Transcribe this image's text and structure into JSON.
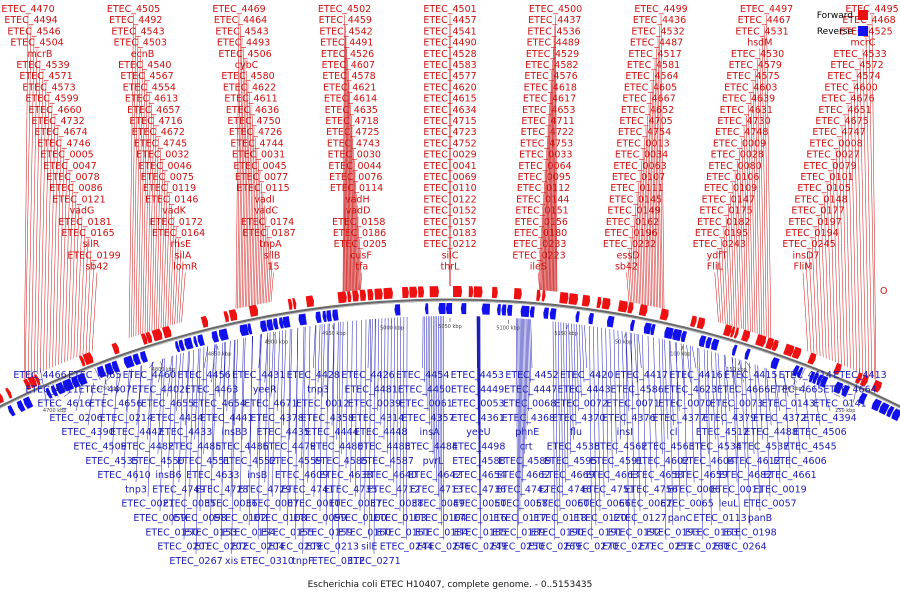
{
  "caption": "Escherichia coli ETEC H10407, complete genome. - 0..5153435",
  "legend": [
    {
      "label": "Forward",
      "color": "#ee1111"
    },
    {
      "label": "Reverse",
      "color": "#1111ee"
    }
  ],
  "origin_label": "O",
  "scale_labels": [
    "4700 kbp",
    "4750 kbp",
    "4800 kbp",
    "4850 kbp",
    "4900 kbp",
    "4950 kbp",
    "5000 kbp",
    "5050 kbp",
    "5100 kbp",
    "5150 kbp",
    "50 kbp",
    "100 kbp",
    "150 kbp",
    "200 kbp",
    "250 kbp"
  ],
  "colors": {
    "forward": "#ee1111",
    "reverse": "#1111ee",
    "forward_label": "#cc1111",
    "reverse_label": "#1a1ab4",
    "backbone": "#666666"
  },
  "forward_labels": [
    "ETEC_4470",
    "ETEC_4505",
    "ETEC_4469",
    "ETEC_4502",
    "ETEC_4501",
    "ETEC_4500",
    "ETEC_4499",
    "ETEC_4497",
    "ETEC_4495",
    "ETEC_4494",
    "ETEC_4492",
    "ETEC_4464",
    "ETEC_4459",
    "ETEC_4457",
    "ETEC_4437",
    "ETEC_4436",
    "ETEC_4467",
    "ETEC_4468",
    "ETEC_4546",
    "ETEC_4543",
    "ETEC_4543",
    "ETEC_4542",
    "ETEC_4541",
    "ETEC_4536",
    "ETEC_4532",
    "ETEC_4531",
    "ETEC_4525",
    "ETEC_4504",
    "ETEC_4503",
    "ETEC_4493",
    "ETEC_4491",
    "ETEC_4490",
    "ETEC_4489",
    "ETEC_4487",
    "hsdM",
    "mcrC",
    "mcrB",
    "ecnB",
    "ETEC_4506",
    "ETEC_4526",
    "ETEC_4528",
    "ETEC_4529",
    "ETEC_4517",
    "ETEC_4530",
    "ETEC_4533",
    "ETEC_4539",
    "ETEC_4540",
    "cybC",
    "ETEC_4607",
    "ETEC_4583",
    "ETEC_4582",
    "ETEC_4581",
    "ETEC_4579",
    "ETEC_4572",
    "ETEC_4571",
    "ETEC_4567",
    "ETEC_4580",
    "ETEC_4578",
    "ETEC_4577",
    "ETEC_4576",
    "ETEC_4564",
    "ETEC_4575",
    "ETEC_4574",
    "ETEC_4573",
    "ETEC_4554",
    "ETEC_4622",
    "ETEC_4621",
    "ETEC_4620",
    "ETEC_4618",
    "ETEC_4605",
    "ETEC_4603",
    "ETEC_4600",
    "ETEC_4599",
    "ETEC_4613",
    "ETEC_4611",
    "ETEC_4614",
    "ETEC_4615",
    "ETEC_4617",
    "ETEC_4667",
    "ETEC_4639",
    "ETEC_4676",
    "ETEC_4660",
    "ETEC_4657",
    "ETEC_4636",
    "ETEC_4635",
    "ETEC_4634",
    "ETEC_4653",
    "ETEC_4652",
    "ETEC_4631",
    "ETEC_4651",
    "ETEC_4732",
    "ETEC_4716",
    "ETEC_4750",
    "ETEC_4718",
    "ETEC_4715",
    "ETEC_4711",
    "ETEC_4705",
    "ETEC_4730",
    "ETEC_4675",
    "ETEC_4674",
    "ETEC_4672",
    "ETEC_4726",
    "ETEC_4725",
    "ETEC_4723",
    "ETEC_4722",
    "ETEC_4754",
    "ETEC_4748",
    "ETEC_4747",
    "ETEC_4746",
    "ETEC_4745",
    "ETEC_4744",
    "ETEC_4743",
    "ETEC_4752",
    "ETEC_4753",
    "ETEC_0013",
    "ETEC_0009",
    "ETEC_0008",
    "ETEC_0005",
    "ETEC_0032",
    "ETEC_0031",
    "ETEC_0030",
    "ETEC_0029",
    "ETEC_0033",
    "ETEC_0034",
    "ETEC_0028",
    "ETEC_0027",
    "ETEC_0047",
    "ETEC_0046",
    "ETEC_0045",
    "ETEC_0044",
    "ETEC_0041",
    "ETEC_0064",
    "ETEC_0063",
    "ETEC_0080",
    "ETEC_0079",
    "ETEC_0078",
    "ETEC_0075",
    "ETEC_0077",
    "ETEC_0076",
    "ETEC_0069",
    "ETEC_0095",
    "ETEC_0107",
    "ETEC_0106",
    "ETEC_0101",
    "ETEC_0086",
    "ETEC_0119",
    "ETEC_0115",
    "ETEC_0114",
    "ETEC_0110",
    "ETEC_0112",
    "ETEC_0111",
    "ETEC_0109",
    "ETEC_0105",
    "ETEC_0121",
    "ETEC_0146",
    "vadI",
    "vadH",
    "ETEC_0122",
    "ETEC_0144",
    "ETEC_0145",
    "ETEC_0147",
    "ETEC_0148",
    "vadG",
    "vadK",
    "vadC",
    "vadD",
    "ETEC_0152",
    "ETEC_0151",
    "ETEC_0149",
    "ETEC_0175",
    "ETEC_0177",
    "ETEC_0181",
    "ETEC_0172",
    "ETEC_0174",
    "ETEC_0158",
    "ETEC_0157",
    "ETEC_0156",
    "ETEC_0162",
    "ETEC_0182",
    "ETEC_0197",
    "ETEC_0165",
    "ETEC_0164",
    "ETEC_0187",
    "ETEC_0186",
    "ETEC_0183",
    "ETEC_0180",
    "ETEC_0196",
    "ETEC_0195",
    "ETEC_0194",
    "silR",
    "rhsE",
    "tnpA",
    "ETEC_0205",
    "ETEC_0212",
    "ETEC_0233",
    "ETEC_0232",
    "ETEC_0243",
    "ETEC_0245",
    "ETEC_0199",
    "silA",
    "silB",
    "cusF",
    "silC",
    "ETEC_0223",
    "essD",
    "ydfT",
    "insD7",
    "sb42",
    "lomR",
    "15",
    "tfa",
    "thrL",
    "ileS",
    "sb42",
    "FliL",
    "FliM"
  ],
  "reverse_labels": [
    "ETEC_4466",
    "ETEC_4465",
    "ETEC_4460",
    "ETEC_4456",
    "ETEC_4431",
    "ETEC_4428",
    "ETEC_4426",
    "ETEC_4454",
    "ETEC_4453",
    "ETEC_4452",
    "ETEC_4420",
    "ETEC_4417",
    "ETEC_4416",
    "ETEC_4415",
    "ETEC_4414",
    "ETEC_4413",
    "ETEC_4411",
    "ETEC_4407",
    "ETEC_4402",
    "ETEC_4463",
    "yeeR",
    "tnp3",
    "ETEC_4481",
    "ETEC_4450",
    "ETEC_4449",
    "ETEC_4447",
    "ETEC_4443",
    "ETEC_4586",
    "ETEC_4623",
    "ETEC_4666",
    "ETEC_4665",
    "ETEC_4664",
    "ETEC_4616",
    "ETEC_4656",
    "ETEC_4655",
    "ETEC_4654",
    "ETEC_4671",
    "ETEC_0012",
    "ETEC_0039",
    "ETEC_0061",
    "ETEC_0053",
    "ETEC_0068",
    "ETEC_0072",
    "ETEC_0071",
    "ETEC_0070",
    "ETEC_0073",
    "ETEC_0143",
    "ETEC_0141",
    "ETEC_0206",
    "ETEC_0214",
    "ETEC_4434",
    "ETEC_4441",
    "ETEC_4378",
    "ETEC_4358",
    "ETEC_4314",
    "ETEC_4357",
    "ETEC_4361",
    "ETEC_4368",
    "ETEC_4370",
    "ETEC_4376",
    "ETEC_4377",
    "ETEC_4379",
    "ETEC_4372",
    "ETEC_4394",
    "ETEC_4390",
    "ETEC_4442",
    "ETEC_4433",
    "insB3",
    "ETEC_4435",
    "ETEC_4444",
    "ETEC_4448",
    "insA",
    "yeeU",
    "phnE",
    "flu",
    "insI",
    "cl",
    "ETEC_4512",
    "ETEC_4488",
    "ETEC_4506",
    "ETEC_4509",
    "ETEC_4482",
    "ETEC_4485",
    "ETEC_4486",
    "ETEC_4479",
    "ETEC_4480",
    "ETEC_4483",
    "ETEC_4484",
    "ETEC_4498",
    "crt",
    "ETEC_4538",
    "ETEC_4562",
    "ETEC_4563",
    "ETEC_4534",
    "ETEC_4537",
    "ETEC_4545",
    "ETEC_4535",
    "ETEC_4550",
    "ETEC_4551",
    "ETEC_4552",
    "ETEC_4559",
    "ETEC_4585",
    "ETEC_4587",
    "pvrL",
    "ETEC_4588",
    "ETEC_4589",
    "ETEC_4595",
    "ETEC_4591",
    "ETEC_4602",
    "ETEC_4604",
    "ETEC_4612",
    "ETEC_4606",
    "ETEC_4610",
    "insB6",
    "ETEC_4633",
    "insB",
    "ETEC_4609",
    "ETEC_4638",
    "ETEC_4640",
    "ETEC_4642",
    "ETEC_4654",
    "ETEC_4662",
    "ETEC_4669",
    "ETEC_4663",
    "ETEC_4658",
    "ETEC_4659",
    "ETEC_4682",
    "ETEC_4661",
    "tnp3",
    "ETEC_4749",
    "ETEC_4728",
    "ETEC_4729",
    "ETEC_4741",
    "ETEC_4735",
    "ETEC_4712",
    "ETEC_4713",
    "ETEC_4736",
    "ETEC_4742",
    "ETEC_4746",
    "ETEC_4751",
    "ETEC_4756",
    "ETEC_0006",
    "ETEC_0011",
    "ETEC_0019",
    "ETEC_0021",
    "ETEC_0035",
    "ETEC_0036",
    "ETEC_0007",
    "ETEC_0010",
    "ETEC_0037",
    "ETEC_0038",
    "ETEC_0049",
    "ETEC_0050",
    "ETEC_0058",
    "ETEC_0060",
    "ETEC_0066",
    "ETEC_0062",
    "ETEC_0065",
    "leuL",
    "ETEC_0057",
    "ETEC_0059",
    "ETEC_0098",
    "ETEC_0102",
    "ETEC_0108",
    "ETEC_0099",
    "ETEC_0100",
    "ETEC_0103",
    "ETEC_0104",
    "ETEC_0116",
    "ETEC_0117",
    "ETEC_0118",
    "ETEC_0120",
    "ETEC_0127",
    "panC",
    "ETEC_0113",
    "panB",
    "ETEC_0150",
    "ETEC_0153",
    "ETEC_0154",
    "ETEC_0155",
    "ETEC_0159",
    "ETEC_0160",
    "ETEC_0161",
    "ETEC_0184",
    "ETEC_0185",
    "ETEC_0189",
    "ETEC_0190",
    "ETEC_0191",
    "ETEC_0192",
    "ETEC_0193",
    "ETEC_0163",
    "ETEC_0198",
    "ETEC_0201",
    "ETEC_0202",
    "ETEC_0204",
    "ETEC_0209",
    "ETEC_0213",
    "silE",
    "ETEC_0244",
    "ETEC_0246",
    "ETEC_0249",
    "ETEC_0250",
    "ETEC_0269",
    "ETEC_0270",
    "ETEC_0271",
    "ETEC_0253",
    "ETEC_0260",
    "ETEC_0264",
    "ETEC_0267",
    "xis",
    "ETEC_0310",
    "tnpF",
    "ETEC_0312",
    "ETEC_0271"
  ]
}
